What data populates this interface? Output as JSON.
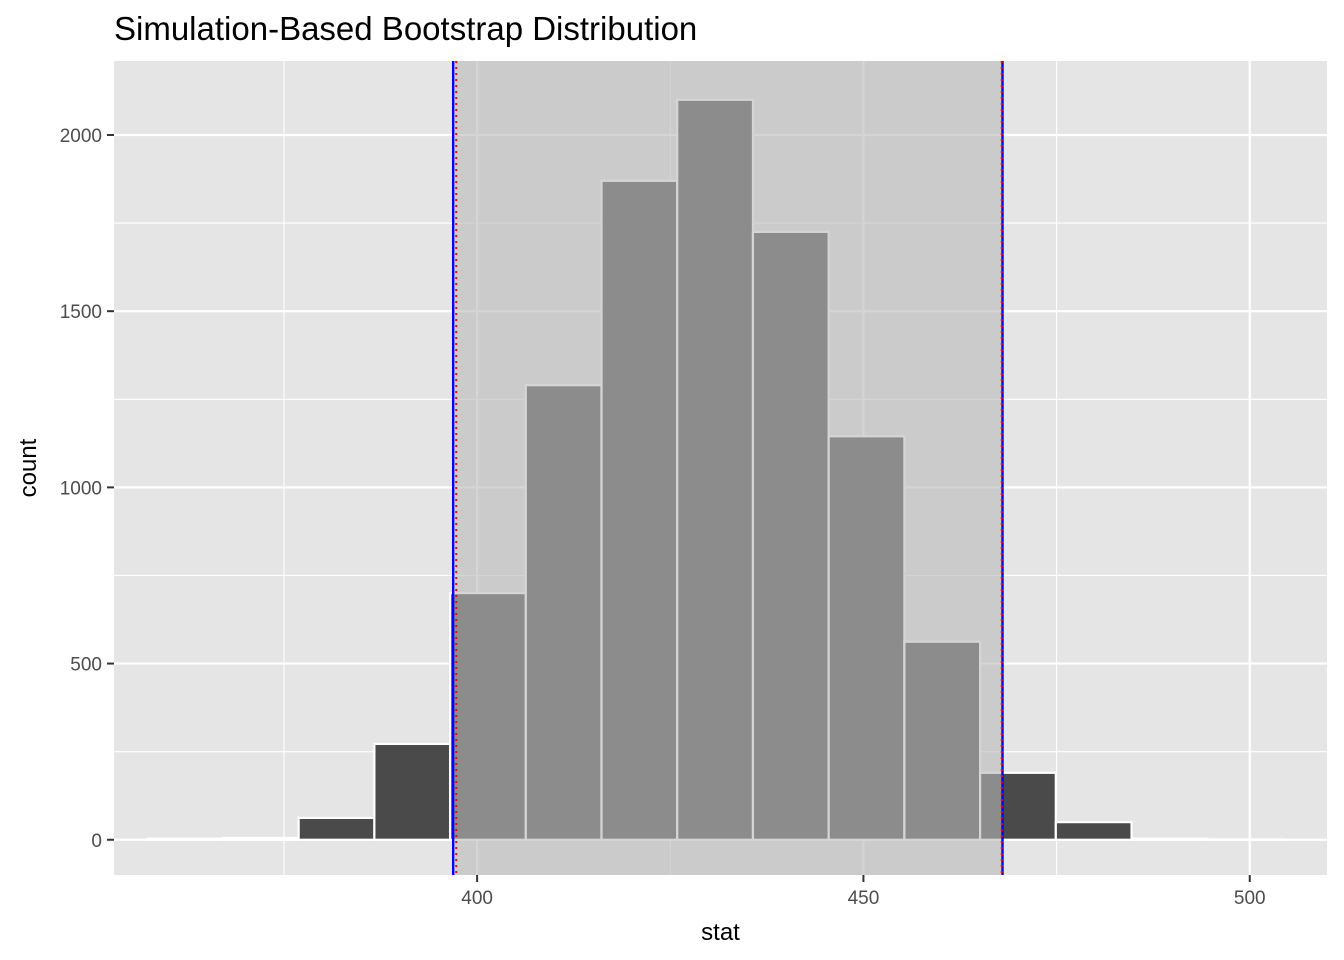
{
  "chart_data": {
    "type": "bar",
    "title": "Simulation-Based Bootstrap Distribution",
    "xlabel": "stat",
    "ylabel": "count",
    "xlim": [
      353,
      510
    ],
    "ylim": [
      -100,
      2210
    ],
    "x_ticks": [
      400,
      450,
      500
    ],
    "y_ticks": [
      0,
      500,
      1000,
      1500,
      2000
    ],
    "bin_width": 9.8,
    "bins": [
      {
        "x": 362.2,
        "count": 3
      },
      {
        "x": 372.0,
        "count": 5
      },
      {
        "x": 381.8,
        "count": 62
      },
      {
        "x": 391.6,
        "count": 272
      },
      {
        "x": 401.4,
        "count": 700
      },
      {
        "x": 411.2,
        "count": 1290
      },
      {
        "x": 421.0,
        "count": 1870
      },
      {
        "x": 430.8,
        "count": 2100
      },
      {
        "x": 440.6,
        "count": 1725
      },
      {
        "x": 450.4,
        "count": 1145
      },
      {
        "x": 460.2,
        "count": 562
      },
      {
        "x": 470.0,
        "count": 190
      },
      {
        "x": 479.8,
        "count": 50
      },
      {
        "x": 489.6,
        "count": 3
      },
      {
        "x": 499.4,
        "count": 1
      }
    ],
    "ci": {
      "lower": 396.9,
      "upper": 468.0
    },
    "ci_reference": {
      "lower": 397.3,
      "upper": 467.9
    },
    "grid": true,
    "colors": {
      "panel": "#e5e5e5",
      "grid": "#ffffff",
      "bar": "#4a4a4a",
      "bar_border": "#ffffff",
      "shade": "#b9b9b9",
      "ci_line": "#0000ff",
      "ref_line": "#ff0000"
    }
  }
}
